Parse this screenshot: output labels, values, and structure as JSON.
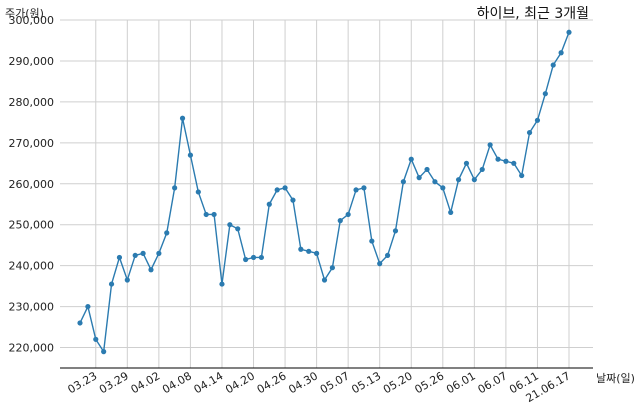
{
  "chart_data": {
    "type": "line",
    "title": "하이브, 최근 3개월",
    "ylabel": "주가(원)",
    "xlabel": "날짜(일)",
    "ylim": [
      215000,
      300000
    ],
    "yticks": [
      220000,
      230000,
      240000,
      250000,
      260000,
      270000,
      280000,
      290000,
      300000
    ],
    "ytick_labels": [
      "220,000",
      "230,000",
      "240,000",
      "250,000",
      "260,000",
      "270,000",
      "280,000",
      "290,000",
      "300,000"
    ],
    "xticks": [
      {
        "index": 2,
        "label": "03.23"
      },
      {
        "index": 6,
        "label": "03.29"
      },
      {
        "index": 10,
        "label": "04.02"
      },
      {
        "index": 14,
        "label": "04.08"
      },
      {
        "index": 18,
        "label": "04.14"
      },
      {
        "index": 22,
        "label": "04.20"
      },
      {
        "index": 26,
        "label": "04.26"
      },
      {
        "index": 30,
        "label": "04.30"
      },
      {
        "index": 34,
        "label": "05.07"
      },
      {
        "index": 38,
        "label": "05.13"
      },
      {
        "index": 42,
        "label": "05.20"
      },
      {
        "index": 46,
        "label": "05.26"
      },
      {
        "index": 50,
        "label": "06.01"
      },
      {
        "index": 54,
        "label": "06.07"
      },
      {
        "index": 58,
        "label": "06.11"
      },
      {
        "index": 62,
        "label": "21.06.17"
      }
    ],
    "grid": true,
    "color": "#2b7bb0",
    "series": [
      {
        "values": [
          226000,
          230000,
          222000,
          219000,
          235500,
          242000,
          236500,
          242500,
          243000,
          239000,
          243000,
          248000,
          259000,
          276000,
          267000,
          258000,
          252500,
          252500,
          235500,
          250000,
          249000,
          241500,
          242000,
          242000,
          255000,
          258500,
          259000,
          256000,
          244000,
          243500,
          243000,
          236500,
          239500,
          251000,
          252500,
          258500,
          259000,
          246000,
          240500,
          242500,
          248500,
          260500,
          266000,
          261500,
          263500,
          260500,
          259000,
          253000,
          261000,
          265000,
          261000,
          263500,
          269500,
          266000,
          265500,
          265000,
          262000,
          272500,
          275500,
          282000,
          289000,
          292000,
          297000
        ]
      }
    ]
  }
}
